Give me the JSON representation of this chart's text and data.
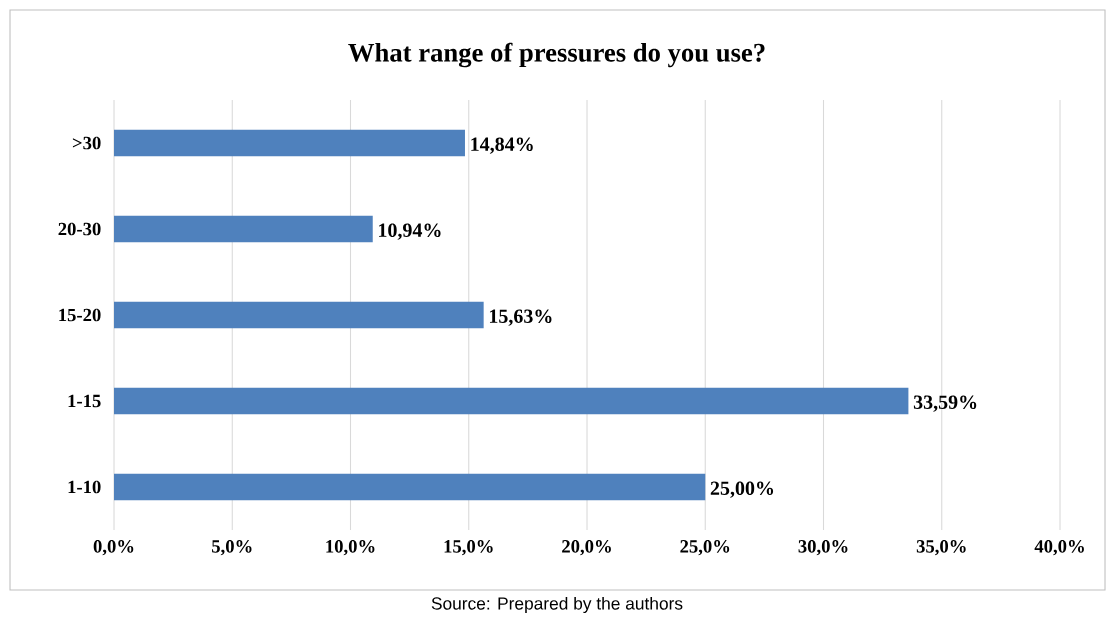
{
  "chart_data": {
    "type": "bar",
    "orientation": "horizontal",
    "title": "What range of pressures do you use?",
    "categories": [
      ">30",
      "20-30",
      "15-20",
      "1-15",
      "1-10"
    ],
    "values": [
      14.84,
      10.94,
      15.63,
      33.59,
      25.0
    ],
    "value_labels": [
      "14,84%",
      "10,94%",
      "15,63%",
      "33,59%",
      "25,00%"
    ],
    "color": "#4f81bd",
    "xlim": [
      0,
      40
    ],
    "xticks": [
      {
        "value": 0,
        "label": "0,0%"
      },
      {
        "value": 5,
        "label": "5,0%"
      },
      {
        "value": 10,
        "label": "10,0%"
      },
      {
        "value": 15,
        "label": "15,0%"
      },
      {
        "value": 20,
        "label": "20,0%"
      },
      {
        "value": 25,
        "label": "25,0%"
      },
      {
        "value": 30,
        "label": "30,0%"
      },
      {
        "value": 35,
        "label": "35,0%"
      },
      {
        "value": 40,
        "label": "40,0%"
      }
    ],
    "grid": "x",
    "annotations": [
      "Source: Prepared by the authors"
    ]
  }
}
